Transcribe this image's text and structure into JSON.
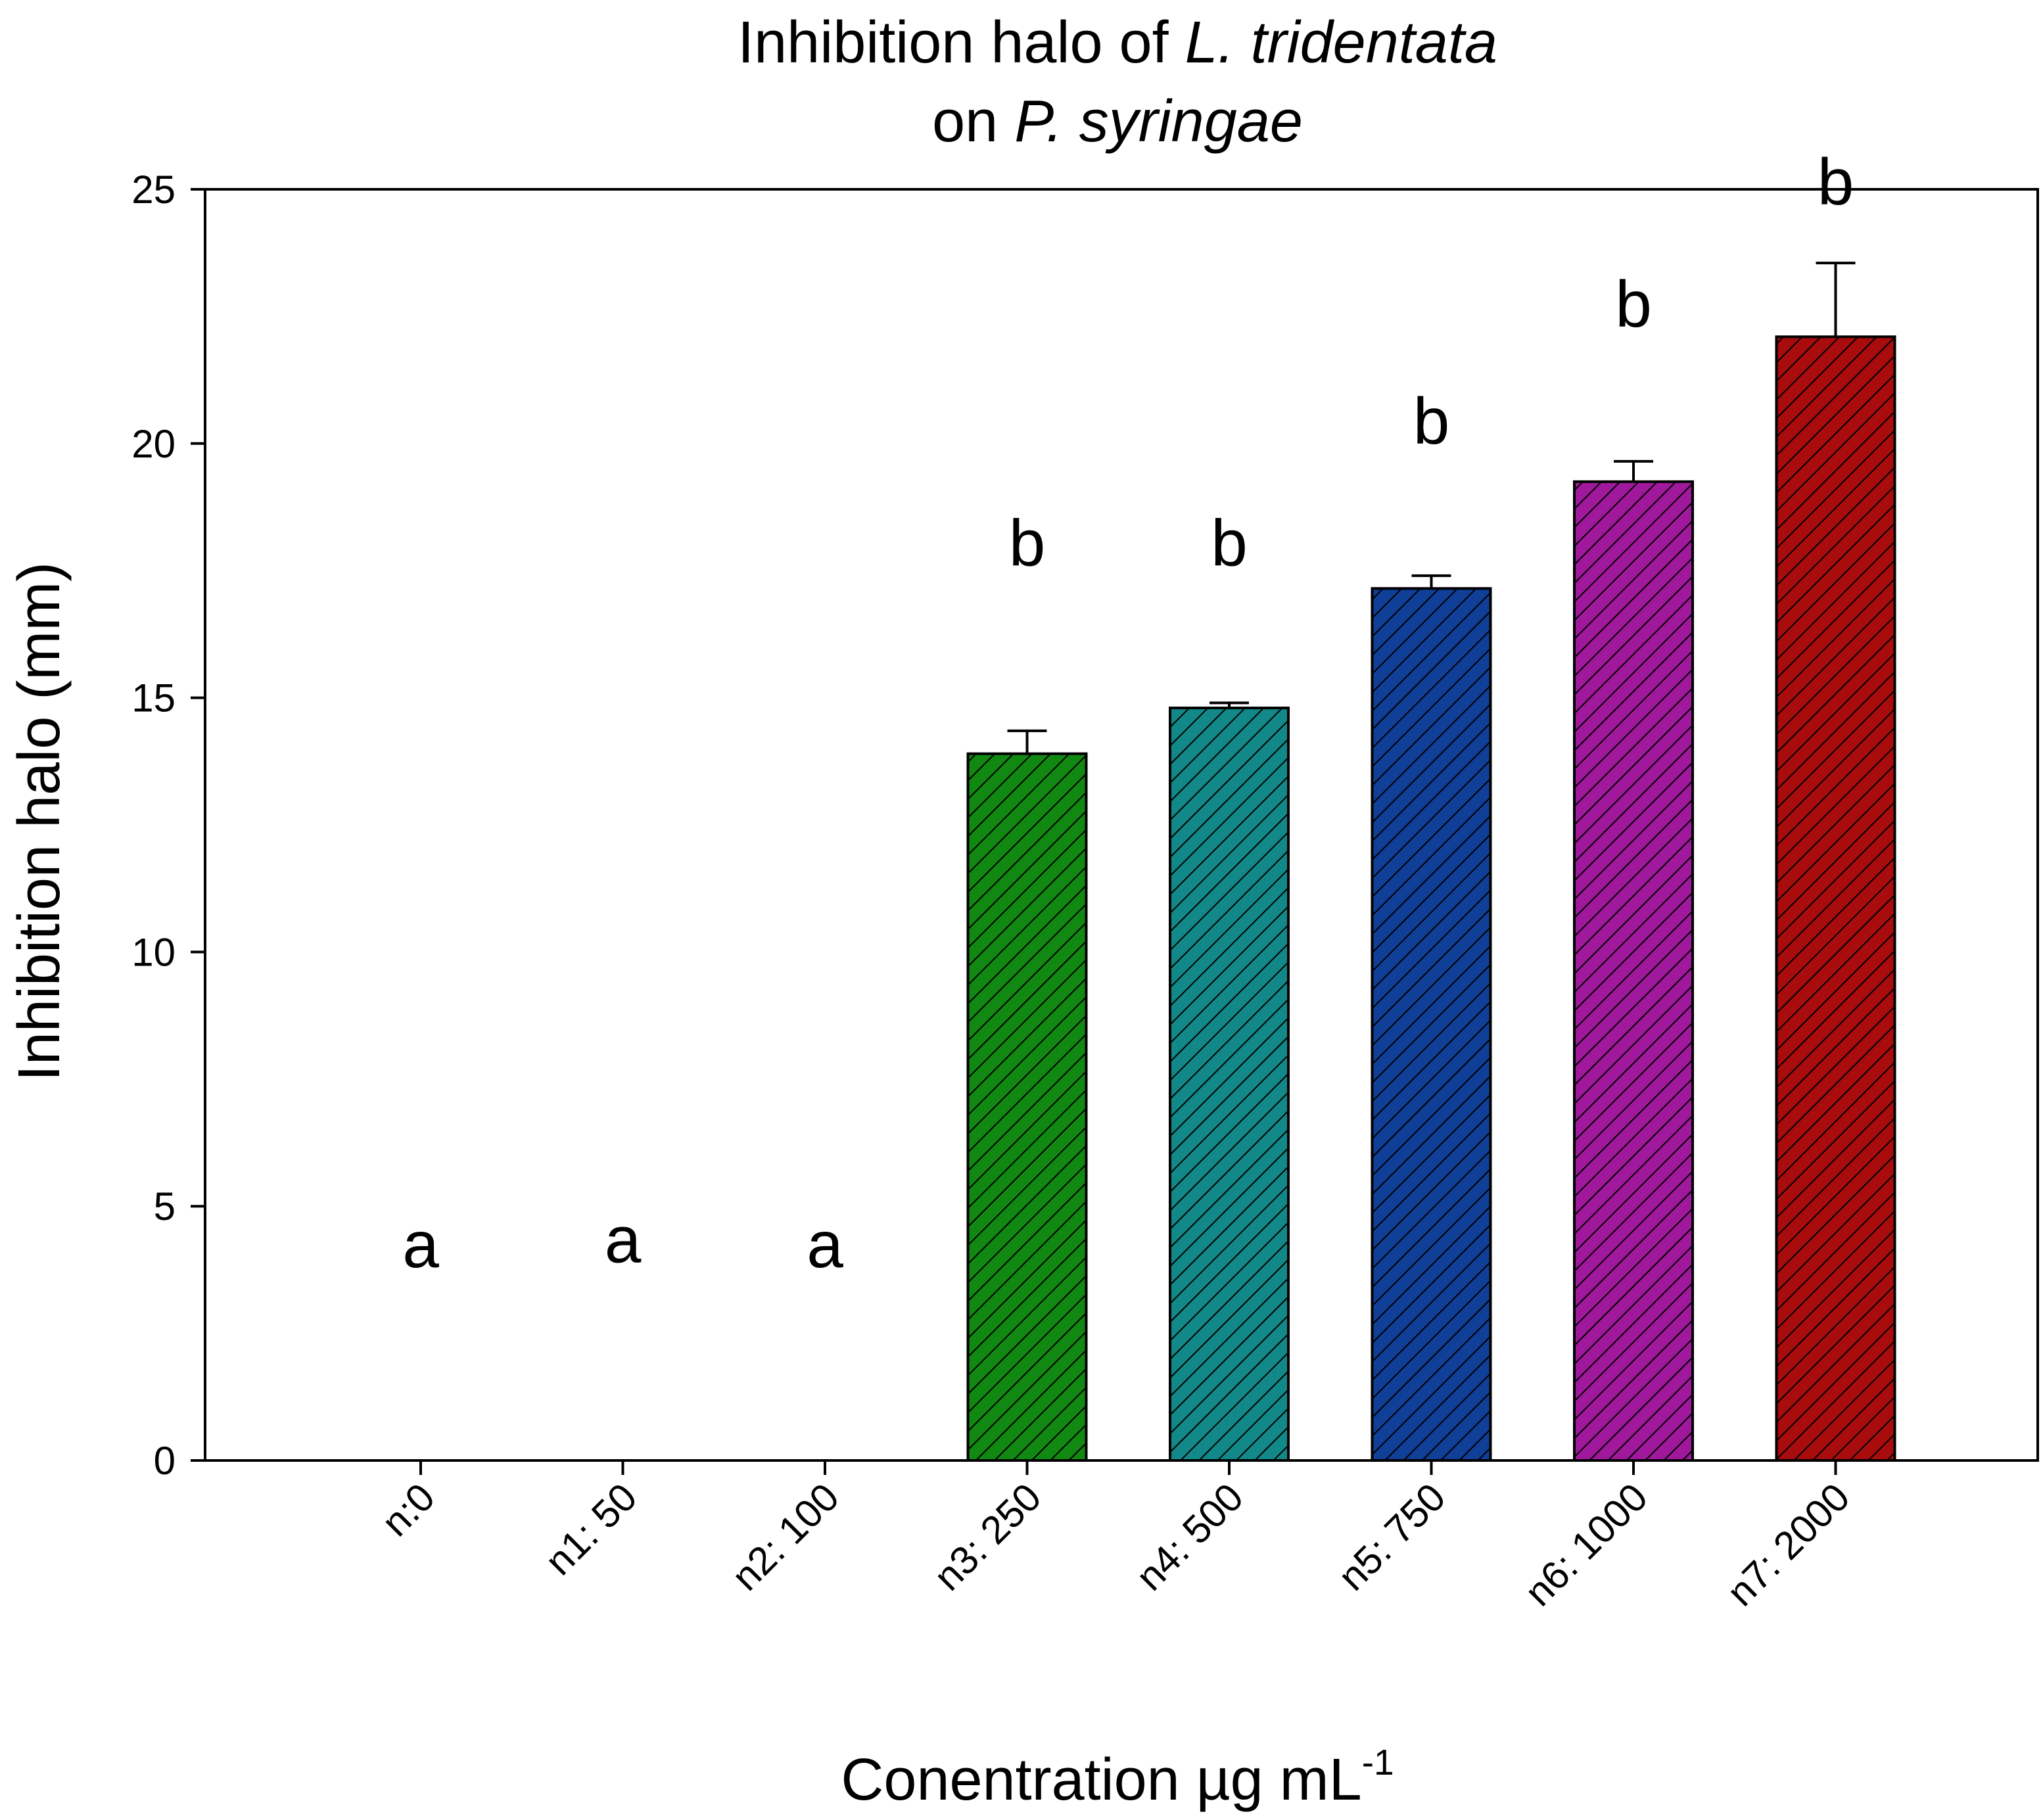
{
  "chart_data": {
    "type": "bar",
    "title": {
      "line1_prefix": "Inhibition halo of ",
      "line1_species": "L. tridentata",
      "line2_prefix": "on ",
      "line2_species": "P. syringae"
    },
    "xlabel": "Conentration  µg mL",
    "xlabel_superscript": "-1",
    "ylabel": "Inhibition halo (mm)",
    "ylim": [
      0,
      25
    ],
    "yticks": [
      0,
      5,
      10,
      15,
      20,
      25
    ],
    "categories": [
      "n:0",
      "n1: 50",
      "n2: 100",
      "n3: 250",
      "n4: 500",
      "n5: 750",
      "n6: 1000",
      "n7: 2000"
    ],
    "values": [
      0,
      0,
      0,
      13.9,
      14.8,
      17.15,
      19.25,
      22.1
    ],
    "errors": [
      0,
      0,
      0,
      0.45,
      0.1,
      0.25,
      0.4,
      1.45
    ],
    "significance": [
      "a",
      "a",
      "a",
      "b",
      "b",
      "b",
      "b",
      "b"
    ],
    "significance_y": [
      3.8,
      3.9,
      3.8,
      17.6,
      17.6,
      20.0,
      22.3,
      24.7
    ],
    "colors": [
      "#ffffff",
      "#ffffff",
      "#ffffff",
      "#118811",
      "#128888",
      "#0f3f96",
      "#a0189c",
      "#a80c0c"
    ],
    "grid": false,
    "hatch": "diagonal"
  }
}
